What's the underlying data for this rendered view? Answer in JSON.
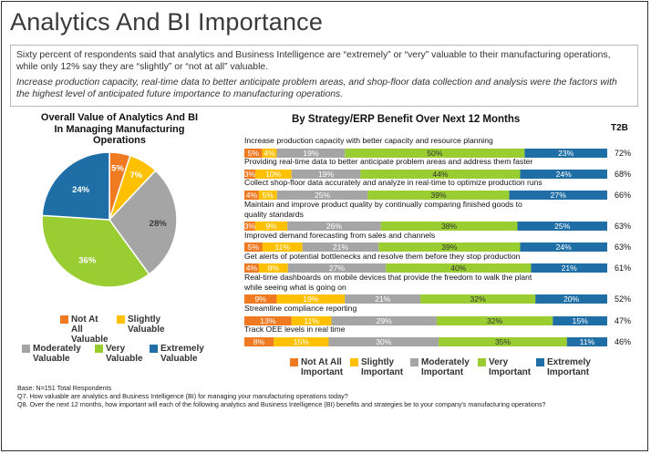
{
  "title": "Analytics And BI Importance",
  "intro": {
    "p1": "Sixty percent of respondents said that analytics and Business Intelligence are “extremely” or “very” valuable to their manufacturing operations, while only 12% say they are “slightly” or “not at all” valuable.",
    "p2": "Increase production capacity, real-time data to better anticipate problem areas, and shop-floor data collection and analysis were the factors with the highest level of anticipated future importance to manufacturing operations."
  },
  "colors": {
    "not_at_all": "#f07a22",
    "slightly": "#ffc000",
    "moderately": "#a5a5a5",
    "very": "#9acd32",
    "extremely": "#1f6fa6"
  },
  "chart_data": [
    {
      "type": "pie",
      "title": "Overall Value of Analytics And BI In Managing Manufacturing Operations",
      "labels": [
        "Not At All Valuable",
        "Slightly Valuable",
        "Moderately Valuable",
        "Very Valuable",
        "Extremely Valuable"
      ],
      "values": [
        5,
        7,
        28,
        36,
        24
      ],
      "value_labels": [
        "5%",
        "7%",
        "28%",
        "36%",
        "24%"
      ]
    },
    {
      "type": "bar",
      "orientation": "horizontal-stacked",
      "title": "By Strategy/ERP Benefit Over Next 12 Months",
      "t2b_header": "T2B",
      "series_names": [
        "Not At All Important",
        "Slightly Important",
        "Moderately Important",
        "Very Important",
        "Extremely Important"
      ],
      "categories": [
        "Increase production capacity with better capacity and resource planning",
        "Providing real-time data to better anticipate problem areas and address them faster",
        "Collect shop-floor data accurately and analyze in real-time to optimize production runs",
        "Maintain and improve product quality by continually comparing finished goods to quality standards",
        "Improved demand forecasting from sales and channels",
        "Get alerts of potential bottlenecks and resolve them before they stop production",
        "Real-time dashboards on mobile devices that provide the freedom to walk the plant while seeing what is going on",
        "Streamline compliance reporting",
        "Track OEE levels in real time"
      ],
      "values": [
        [
          5,
          4,
          19,
          50,
          23
        ],
        [
          3,
          10,
          19,
          44,
          24
        ],
        [
          4,
          5,
          25,
          39,
          27
        ],
        [
          3,
          9,
          26,
          38,
          25
        ],
        [
          5,
          11,
          21,
          39,
          24
        ],
        [
          4,
          8,
          27,
          40,
          21
        ],
        [
          9,
          19,
          21,
          32,
          20
        ],
        [
          13,
          11,
          29,
          32,
          15
        ],
        [
          8,
          15,
          30,
          35,
          11
        ]
      ],
      "t2b": [
        "72%",
        "68%",
        "66%",
        "63%",
        "63%",
        "61%",
        "52%",
        "47%",
        "46%"
      ]
    }
  ],
  "footer": {
    "base": "Base: N=151 Total Respondents",
    "q7": "Q7. How valuable are analytics and Business Intelligence (BI) for managing your manufacturing operations today?",
    "q8": "Q8. Over the next 12 months, how important will each of the following analytics and Business Intelligence (BI) benefits and strategies be to your company's manufacturing operations?"
  }
}
